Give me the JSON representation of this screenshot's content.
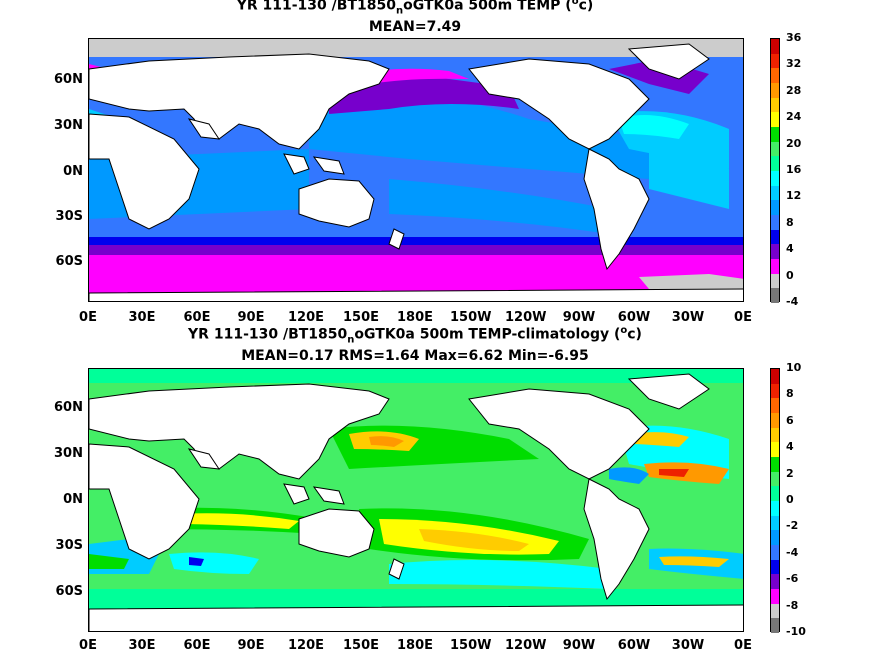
{
  "panels": [
    {
      "title_main": "YR 111-130 /BT1850",
      "title_sub": "n",
      "title_rest": "oGTK0a 500m TEMP (",
      "title_sup": "o",
      "title_end": "c)",
      "stats": "MEAN=7.49",
      "colorbar_ticks": [
        "36",
        "32",
        "28",
        "24",
        "20",
        "16",
        "12",
        "8",
        "4",
        "0",
        "-4"
      ],
      "colorbar_colors": [
        "#cc0000",
        "#ee2200",
        "#ff6600",
        "#ff9900",
        "#ffcc00",
        "#ffff00",
        "#00dd00",
        "#44ee66",
        "#00ff99",
        "#00ffff",
        "#00ccff",
        "#0099ff",
        "#3377ff",
        "#0000ee",
        "#7700cc",
        "#ff00ff",
        "#cccccc",
        "#777777"
      ]
    },
    {
      "title_main": "YR 111-130 /BT1850",
      "title_sub": "n",
      "title_rest": "oGTK0a 500m TEMP-climatology (",
      "title_sup": "o",
      "title_end": "c)",
      "stats": "MEAN=0.17   RMS=1.64   Max=6.62   Min=-6.95",
      "colorbar_ticks": [
        "10",
        "8",
        "6",
        "4",
        "2",
        "0",
        "-2",
        "-4",
        "-6",
        "-8",
        "-10"
      ],
      "colorbar_colors": [
        "#cc0000",
        "#ee2200",
        "#ff6600",
        "#ff9900",
        "#ffcc00",
        "#ffff00",
        "#00dd00",
        "#44ee66",
        "#00ff99",
        "#00ffff",
        "#00ccff",
        "#0099ff",
        "#3377ff",
        "#0000ee",
        "#7700cc",
        "#ff00ff",
        "#cccccc",
        "#777777"
      ]
    }
  ],
  "lat_labels": [
    "60N",
    "30N",
    "0N",
    "30S",
    "60S"
  ],
  "lon_labels": [
    "0E",
    "30E",
    "60E",
    "90E",
    "120E",
    "150E",
    "180E",
    "150W",
    "120W",
    "90W",
    "60W",
    "30W",
    "0E"
  ]
}
